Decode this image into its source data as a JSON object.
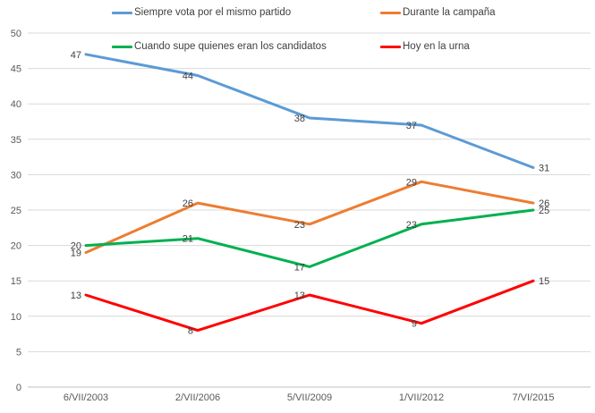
{
  "chart_data": {
    "type": "line",
    "title": "",
    "xlabel": "",
    "ylabel": "",
    "categories": [
      "6/VII/2003",
      "2/VII/2006",
      "5/VII/2009",
      "1/VII/2012",
      "7/VI/2015"
    ],
    "series": [
      {
        "name": "Siempre vota por el mismo partido",
        "color": "#5B9BD5",
        "values": [
          47,
          44,
          38,
          37,
          31
        ]
      },
      {
        "name": "Durante la campaña",
        "color": "#ED7D31",
        "values": [
          19,
          26,
          23,
          29,
          26
        ]
      },
      {
        "name": "Cuando supe quienes eran los candidatos",
        "color": "#00B050",
        "values": [
          20,
          21,
          17,
          23,
          25
        ]
      },
      {
        "name": "Hoy en la urna",
        "color": "#FF0000",
        "values": [
          13,
          8,
          13,
          9,
          15
        ]
      }
    ],
    "ylim": [
      0,
      50
    ],
    "ytick_step": 5,
    "grid": true,
    "gridline_color": "#D9D9D9",
    "axis_line_color": "#BFBFBF",
    "tick_label_color": "#595959",
    "data_label_color": "#404040",
    "legend_position": "top",
    "data_labels": true
  }
}
